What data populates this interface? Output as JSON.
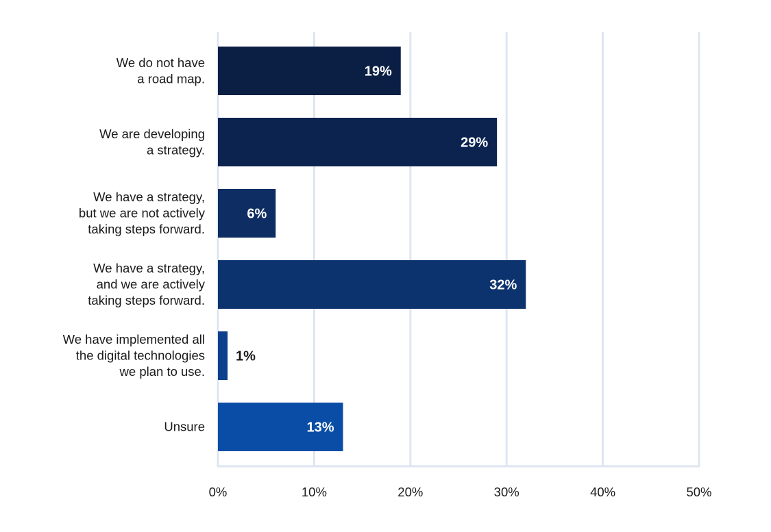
{
  "chart_data": {
    "type": "bar",
    "orientation": "horizontal",
    "title": "",
    "xlabel": "",
    "ylabel": "",
    "categories": [
      [
        "We do not have",
        "a road map."
      ],
      [
        "We are developing",
        "a strategy."
      ],
      [
        "We have a strategy,",
        "but we are not actively",
        "taking steps forward."
      ],
      [
        "We have a strategy,",
        "and we are actively",
        "taking steps forward."
      ],
      [
        "We have implemented all",
        "the digital technologies",
        "we plan to use."
      ],
      [
        "Unsure"
      ]
    ],
    "values": [
      19,
      29,
      6,
      32,
      1,
      13
    ],
    "value_labels": [
      "19%",
      "29%",
      "6%",
      "32%",
      "1%",
      "13%"
    ],
    "colors": [
      "#0b1f45",
      "#0c2350",
      "#0e2e63",
      "#0d336e",
      "#0c3f8c",
      "#0a4da6"
    ],
    "xlim": [
      0,
      50
    ],
    "xticks": [
      0,
      10,
      20,
      30,
      40,
      50
    ],
    "xtick_labels": [
      "0%",
      "10%",
      "20%",
      "30%",
      "40%",
      "50%"
    ],
    "grid": true,
    "grid_color": "#dde6f0"
  }
}
